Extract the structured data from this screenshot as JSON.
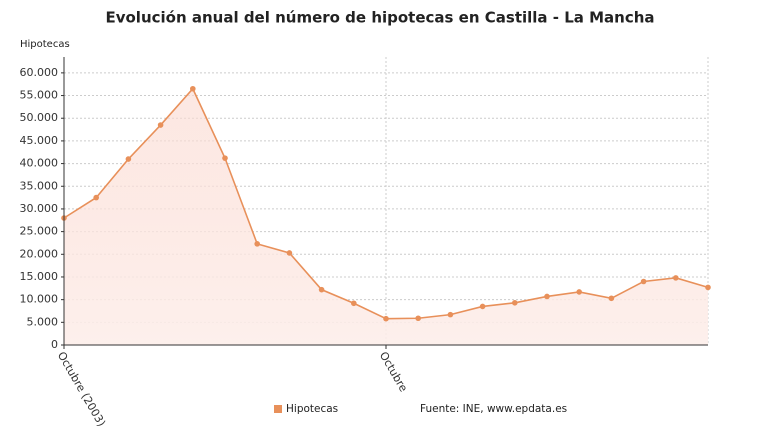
{
  "chart_data": {
    "type": "line",
    "title": "Evolución anual del número de hipotecas en Castilla - La Mancha",
    "y_label": "Hipotecas",
    "source": "Fuente: INE, www.epdata.es",
    "categories": [
      "Octubre (2003)",
      null,
      null,
      null,
      null,
      null,
      null,
      null,
      null,
      null,
      "Octubre",
      null,
      null,
      null,
      null,
      null,
      null,
      null,
      null,
      null,
      null
    ],
    "series": [
      {
        "name": "Hipotecas",
        "color": "#e8905a",
        "values": [
          28000,
          32500,
          41000,
          48500,
          56500,
          41200,
          22300,
          20300,
          12200,
          9200,
          5800,
          5900,
          6700,
          8500,
          9300,
          10700,
          11700,
          10300,
          14000,
          14800,
          12700
        ]
      }
    ],
    "ylim": [
      0,
      63500
    ],
    "yticks": [
      0,
      {
        "value": 5000,
        "label": "5.000"
      },
      {
        "value": 10000,
        "label": "10.000"
      },
      {
        "value": 15000,
        "label": "15.000"
      },
      {
        "value": 20000,
        "label": "20.000"
      },
      {
        "value": 25000,
        "label": "25.000"
      },
      {
        "value": 30000,
        "label": "30.000"
      },
      {
        "value": 35000,
        "label": "35.000"
      },
      {
        "value": 40000,
        "label": "40.000"
      },
      {
        "value": 45000,
        "label": "45.000"
      },
      {
        "value": 50000,
        "label": "50.000"
      },
      {
        "value": 55000,
        "label": "55.000"
      },
      {
        "value": 60000,
        "label": "60.000"
      }
    ],
    "grid": true
  }
}
